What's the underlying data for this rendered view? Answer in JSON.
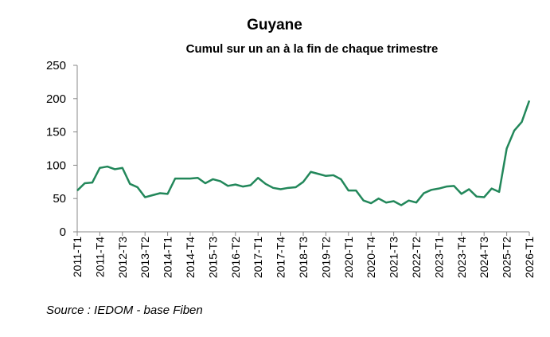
{
  "chart_data": {
    "type": "line",
    "title": "Guyane",
    "subtitle": "Cumul sur un an à la fin de chaque trimestre",
    "source": "Source : IEDOM - base Fiben",
    "categories": [
      "2011-T1",
      null,
      null,
      "2011-T4",
      null,
      null,
      "2012-T3",
      null,
      null,
      "2013-T2",
      null,
      null,
      "2014-T1",
      null,
      null,
      "2014-T4",
      null,
      null,
      "2015-T3",
      null,
      null,
      "2016-T2",
      null,
      null,
      "2017-T1",
      null,
      null,
      "2017-T4",
      null,
      null,
      "2018-T3",
      null,
      null,
      "2019-T2",
      null,
      null,
      "2020-T1",
      null,
      null,
      "2020-T4",
      null,
      null,
      "2021-T3",
      null,
      null,
      "2022-T2",
      null,
      null,
      "2023-T1",
      null,
      null,
      "2023-T4",
      null,
      null,
      "2024-T3",
      null,
      null,
      "2025-T2",
      null,
      null,
      "2026-T1"
    ],
    "values": [
      62,
      73,
      74,
      96,
      98,
      94,
      96,
      72,
      67,
      52,
      55,
      58,
      57,
      80,
      80,
      80,
      81,
      73,
      79,
      76,
      69,
      71,
      68,
      70,
      81,
      72,
      66,
      64,
      66,
      67,
      75,
      90,
      87,
      84,
      85,
      79,
      62,
      62,
      47,
      43,
      50,
      44,
      46,
      40,
      47,
      44,
      58,
      63,
      65,
      68,
      69,
      57,
      64,
      53,
      52,
      65,
      60,
      125,
      152,
      165,
      197
    ],
    "color": "#22875a",
    "ylim": [
      0,
      250
    ],
    "yticks": [
      0,
      50,
      100,
      150,
      200,
      250
    ],
    "grid": false
  }
}
